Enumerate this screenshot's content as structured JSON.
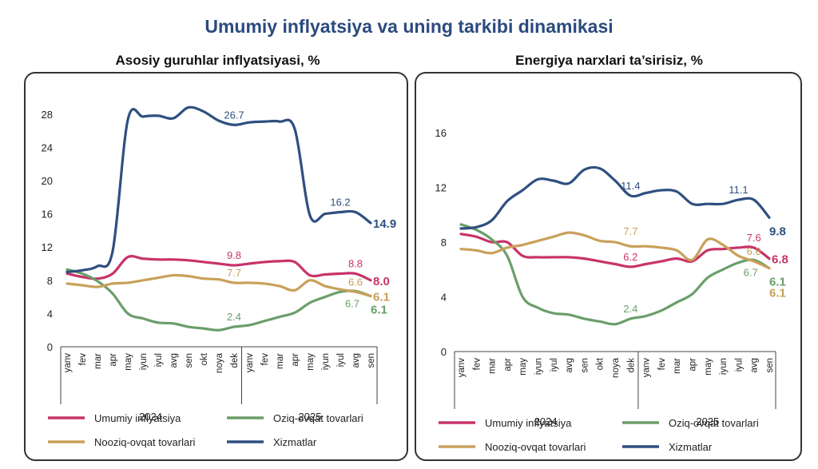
{
  "main_title": "Umumiy inflyatsiya va uning tarkibi dinamikasi",
  "colors": {
    "umumiy": "#c8336a",
    "oziq": "#6a9e6a",
    "nooziq": "#c9a05a",
    "xizmatlar": "#2f4f80"
  },
  "chart_data": [
    {
      "type": "line",
      "title": "Asosiy guruhlar inflyatsiyasi, %",
      "categories": [
        "yanv",
        "fev",
        "mar",
        "apr",
        "may",
        "iyun",
        "iyul",
        "avg",
        "sen",
        "okt",
        "noya",
        "dek",
        "yanv",
        "fev",
        "mar",
        "apr",
        "may",
        "iyun",
        "iyul",
        "avg",
        "sen"
      ],
      "years": [
        {
          "label": "2024",
          "start": 0,
          "end": 11
        },
        {
          "label": "2025",
          "start": 12,
          "end": 20
        }
      ],
      "ylim": [
        0,
        30
      ],
      "yticks": [
        0,
        4,
        8,
        12,
        16,
        20,
        24,
        28
      ],
      "series": [
        {
          "key": "umumiy",
          "name": "Umumiy inflyatsiya",
          "values": [
            8.8,
            8.4,
            8.2,
            8.8,
            10.8,
            10.6,
            10.5,
            10.5,
            10.4,
            10.2,
            10.0,
            9.8,
            10.0,
            10.2,
            10.3,
            10.2,
            8.6,
            8.7,
            8.8,
            8.8,
            8.0
          ]
        },
        {
          "key": "oziq",
          "name": "Oziq-ovqat tovarlari",
          "values": [
            9.3,
            8.8,
            7.9,
            6.4,
            4.0,
            3.4,
            2.9,
            2.8,
            2.4,
            2.2,
            2.0,
            2.4,
            2.6,
            3.1,
            3.6,
            4.1,
            5.3,
            6.0,
            6.6,
            6.7,
            6.1
          ]
        },
        {
          "key": "nooziq",
          "name": "Nooziq-ovqat tovarlari",
          "values": [
            7.6,
            7.4,
            7.2,
            7.6,
            7.7,
            8.0,
            8.3,
            8.6,
            8.5,
            8.2,
            8.1,
            7.7,
            7.7,
            7.6,
            7.3,
            6.8,
            8.0,
            7.3,
            6.9,
            6.6,
            6.1
          ]
        },
        {
          "key": "xizmatlar",
          "name": "Xizmatlar",
          "values": [
            9.0,
            9.2,
            9.7,
            11.5,
            27.3,
            27.7,
            27.8,
            27.5,
            28.8,
            28.3,
            27.2,
            26.7,
            27.0,
            27.1,
            27.1,
            26.2,
            15.8,
            16.0,
            16.2,
            16.2,
            14.9
          ]
        }
      ],
      "labels": [
        {
          "series": "xizmatlar",
          "text": "26.7",
          "x": 11,
          "y": 26.7,
          "pos": "above"
        },
        {
          "series": "xizmatlar",
          "text": "16.2",
          "x": 18,
          "y": 16.2,
          "pos": "above"
        },
        {
          "series": "xizmatlar",
          "text": "14.9",
          "x": 20,
          "y": 14.9,
          "pos": "end",
          "bold": true
        },
        {
          "series": "umumiy",
          "text": "9.8",
          "x": 11,
          "y": 9.8,
          "pos": "above"
        },
        {
          "series": "umumiy",
          "text": "8.8",
          "x": 19,
          "y": 8.8,
          "pos": "above"
        },
        {
          "series": "umumiy",
          "text": "8.0",
          "x": 20,
          "y": 8.0,
          "pos": "end",
          "bold": true
        },
        {
          "series": "nooziq",
          "text": "7.7",
          "x": 11,
          "y": 7.7,
          "pos": "above"
        },
        {
          "series": "nooziq",
          "text": "6.6",
          "x": 19,
          "y": 6.6,
          "pos": "above"
        },
        {
          "series": "nooziq",
          "text": "6.1",
          "x": 20,
          "y": 6.1,
          "pos": "end",
          "bold": true
        },
        {
          "series": "oziq",
          "text": "2.4",
          "x": 11,
          "y": 2.4,
          "pos": "above"
        },
        {
          "series": "oziq",
          "text": "6.7",
          "x": 19,
          "y": 6.7,
          "pos": "below"
        },
        {
          "series": "oziq",
          "text": "6.1",
          "x": 20,
          "y": 6.1,
          "pos": "endbelow",
          "bold": true
        }
      ],
      "legend": [
        {
          "key": "umumiy",
          "text": "Umumiy inflyatsiya"
        },
        {
          "key": "oziq",
          "text": "Oziq-ovqat tovarlari"
        },
        {
          "key": "nooziq",
          "text": "Nooziq-ovqat tovarlari"
        },
        {
          "key": "xizmatlar",
          "text": "Xizmatlar"
        }
      ]
    },
    {
      "type": "line",
      "title": "Energiya narxlari ta’sirisiz, %",
      "categories": [
        "yanv",
        "fev",
        "mar",
        "apr",
        "may",
        "iyun",
        "iyul",
        "avg",
        "sen",
        "okt",
        "noya",
        "dek",
        "yanv",
        "fev",
        "mar",
        "apr",
        "may",
        "iyun",
        "iyul",
        "avg",
        "sen"
      ],
      "years": [
        {
          "label": "2024",
          "start": 0,
          "end": 11
        },
        {
          "label": "2025",
          "start": 12,
          "end": 20
        }
      ],
      "ylim": [
        0,
        18
      ],
      "yticks": [
        0,
        4,
        8,
        12,
        16
      ],
      "series": [
        {
          "key": "umumiy",
          "name": "Umumiy inflyatsiya",
          "values": [
            8.6,
            8.4,
            8.0,
            8.0,
            7.0,
            6.9,
            6.9,
            6.9,
            6.8,
            6.6,
            6.4,
            6.2,
            6.4,
            6.6,
            6.8,
            6.6,
            7.4,
            7.5,
            7.6,
            7.6,
            6.8
          ]
        },
        {
          "key": "oziq",
          "name": "Oziq-ovqat tovarlari",
          "values": [
            9.3,
            8.9,
            8.2,
            7.0,
            4.0,
            3.2,
            2.8,
            2.7,
            2.4,
            2.2,
            2.0,
            2.4,
            2.6,
            3.0,
            3.6,
            4.2,
            5.4,
            6.0,
            6.5,
            6.7,
            6.1
          ]
        },
        {
          "key": "nooziq",
          "name": "Nooziq-ovqat tovarlari",
          "values": [
            7.5,
            7.4,
            7.2,
            7.6,
            7.8,
            8.1,
            8.4,
            8.7,
            8.5,
            8.1,
            8.0,
            7.7,
            7.7,
            7.6,
            7.4,
            6.7,
            8.2,
            7.8,
            7.0,
            6.6,
            6.1
          ]
        },
        {
          "key": "xizmatlar",
          "name": "Xizmatlar",
          "values": [
            9.0,
            9.1,
            9.6,
            11.0,
            11.8,
            12.6,
            12.5,
            12.3,
            13.3,
            13.4,
            12.5,
            11.4,
            11.6,
            11.8,
            11.7,
            10.8,
            10.8,
            10.8,
            11.1,
            11.1,
            9.8
          ]
        }
      ],
      "labels": [
        {
          "series": "xizmatlar",
          "text": "11.4",
          "x": 11,
          "y": 11.4,
          "pos": "above"
        },
        {
          "series": "xizmatlar",
          "text": "11.1",
          "x": 18,
          "y": 11.1,
          "pos": "above"
        },
        {
          "series": "xizmatlar",
          "text": "9.8",
          "x": 20,
          "y": 9.8,
          "pos": "endbelow",
          "bold": true
        },
        {
          "series": "nooziq",
          "text": "7.7",
          "x": 11,
          "y": 7.7,
          "pos": "aboveHigh"
        },
        {
          "series": "nooziq",
          "text": "6.6",
          "x": 19,
          "y": 6.6,
          "pos": "above"
        },
        {
          "series": "nooziq",
          "text": "6.1",
          "x": 20,
          "y": 6.1,
          "pos": "farbelow",
          "bold": true
        },
        {
          "series": "umumiy",
          "text": "6.2",
          "x": 11,
          "y": 6.2,
          "pos": "above"
        },
        {
          "series": "umumiy",
          "text": "7.6",
          "x": 19,
          "y": 7.6,
          "pos": "above"
        },
        {
          "series": "umumiy",
          "text": "6.8",
          "x": 20,
          "y": 6.8,
          "pos": "end",
          "bold": true
        },
        {
          "series": "oziq",
          "text": "2.4",
          "x": 11,
          "y": 2.4,
          "pos": "above"
        },
        {
          "series": "oziq",
          "text": "6.7",
          "x": 19,
          "y": 6.7,
          "pos": "below"
        },
        {
          "series": "oziq",
          "text": "6.1",
          "x": 20,
          "y": 6.1,
          "pos": "endbelow",
          "bold": true
        }
      ],
      "legend": [
        {
          "key": "umumiy",
          "text": "Umumiy inflyatsiya"
        },
        {
          "key": "oziq",
          "text": "Oziq-ovqat tovarlari"
        },
        {
          "key": "nooziq",
          "text": "Nooziq-ovqat tovarlari"
        },
        {
          "key": "xizmatlar",
          "text": "Xizmatlar"
        }
      ]
    }
  ]
}
